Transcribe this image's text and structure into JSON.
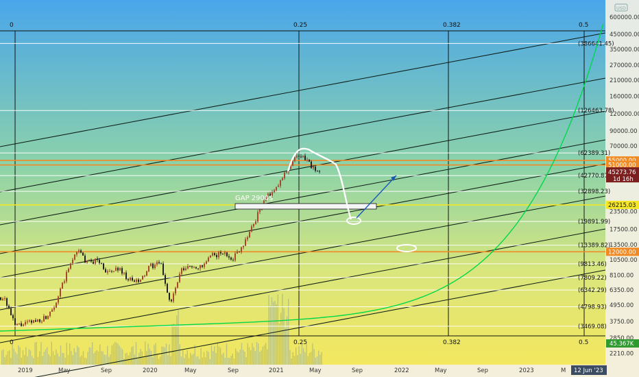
{
  "chart_data": {
    "type": "candlestick",
    "currency": "USD",
    "x_ticks": [
      "2019",
      "May",
      "Sep",
      "2020",
      "May",
      "Sep",
      "2021",
      "May",
      "Sep",
      "2022",
      "May",
      "Sep",
      "2023",
      "M",
      "12 Jun '23"
    ],
    "y_scale": "log",
    "y_ticks": [
      "600000.00",
      "450000.00",
      "350000.00",
      "270000.00",
      "210000.00",
      "160000.00",
      "120000.00",
      "90000.00",
      "70000.00",
      "55000.00",
      "51000.00",
      "45273.76",
      "26215.03",
      "23500.00",
      "17500.00",
      "13500.00",
      "12000.00",
      "10500.00",
      "8100.00",
      "6350.00",
      "4950.00",
      "3750.00",
      "2850.00",
      "2210.00"
    ],
    "y_tick_values": [
      600000,
      450000,
      350000,
      270000,
      210000,
      160000,
      120000,
      90000,
      70000,
      55000,
      51000,
      45273.76,
      26215.03,
      23500,
      17500,
      13500,
      12000,
      10500,
      8100,
      6350,
      4950,
      3750,
      2850,
      2210
    ],
    "levels": [
      {
        "label": "(386641.45)",
        "value": 386641.45,
        "color": "#ffffff"
      },
      {
        "label": "(126463.78)",
        "value": 126463.78,
        "color": "#ffffff"
      },
      {
        "label": "(62389.31)",
        "value": 62389.31,
        "color": "#ffffff"
      },
      {
        "label": "(42770.87)",
        "value": 42770.87,
        "color": "#ffffff"
      },
      {
        "label": "(32898.23)",
        "value": 32898.23,
        "color": "#ffffff"
      },
      {
        "label": "(19891.99)",
        "value": 19891.99,
        "color": "#ffffff"
      },
      {
        "label": "(13389.82)",
        "value": 13389.82,
        "color": "#ffffff"
      },
      {
        "label": "(9813.46)",
        "value": 9813.46,
        "color": "#ffffff"
      },
      {
        "label": "(7809.22)",
        "value": 7809.22,
        "color": "#ffffff"
      },
      {
        "label": "(6342.29)",
        "value": 6342.29,
        "color": "#ffffff"
      },
      {
        "label": "(4798.93)",
        "value": 4798.93,
        "color": "#ffffff"
      },
      {
        "label": "(3469.08)",
        "value": 3469.08,
        "color": "#ffffff"
      }
    ],
    "horizontal_lines": [
      {
        "label": "55000.00",
        "value": 55000,
        "color": "#f08a24"
      },
      {
        "label": "51000.00",
        "value": 51000,
        "color": "#f08a24"
      },
      {
        "label": "26215.03",
        "value": 26215.03,
        "color": "#f5e625"
      },
      {
        "label": "12000.00",
        "value": 12000,
        "color": "#f08a24"
      }
    ],
    "last_price": {
      "value": "45273.76",
      "countdown": "1d 16h"
    },
    "volume_label": "45.367K",
    "fib_time_labels": [
      "0",
      "0.25",
      "0.382",
      "0.5"
    ],
    "annotations": [
      "GAP 2900$"
    ],
    "price_path": [
      [
        "2018-11",
        5600
      ],
      [
        "2018-12",
        3500
      ],
      [
        "2019-01",
        3600
      ],
      [
        "2019-02",
        3800
      ],
      [
        "2019-03",
        4000
      ],
      [
        "2019-04",
        5200
      ],
      [
        "2019-05",
        8200
      ],
      [
        "2019-06",
        12500
      ],
      [
        "2019-07",
        10000
      ],
      [
        "2019-08",
        10500
      ],
      [
        "2019-09",
        8300
      ],
      [
        "2019-10",
        9200
      ],
      [
        "2019-11",
        7500
      ],
      [
        "2019-12",
        7200
      ],
      [
        "2020-01",
        9400
      ],
      [
        "2020-02",
        9900
      ],
      [
        "2020-03",
        5000
      ],
      [
        "2020-04",
        8700
      ],
      [
        "2020-05",
        9500
      ],
      [
        "2020-06",
        9200
      ],
      [
        "2020-07",
        11300
      ],
      [
        "2020-08",
        11700
      ],
      [
        "2020-09",
        10800
      ],
      [
        "2020-10",
        13800
      ],
      [
        "2020-11",
        19400
      ],
      [
        "2020-12",
        29000
      ],
      [
        "2021-01",
        33000
      ],
      [
        "2021-02",
        45000
      ],
      [
        "2021-03",
        58000
      ],
      [
        "2021-04",
        57000
      ],
      [
        "2021-05",
        45273.76
      ]
    ]
  },
  "icons": [
    "chart-watermark-icon"
  ]
}
